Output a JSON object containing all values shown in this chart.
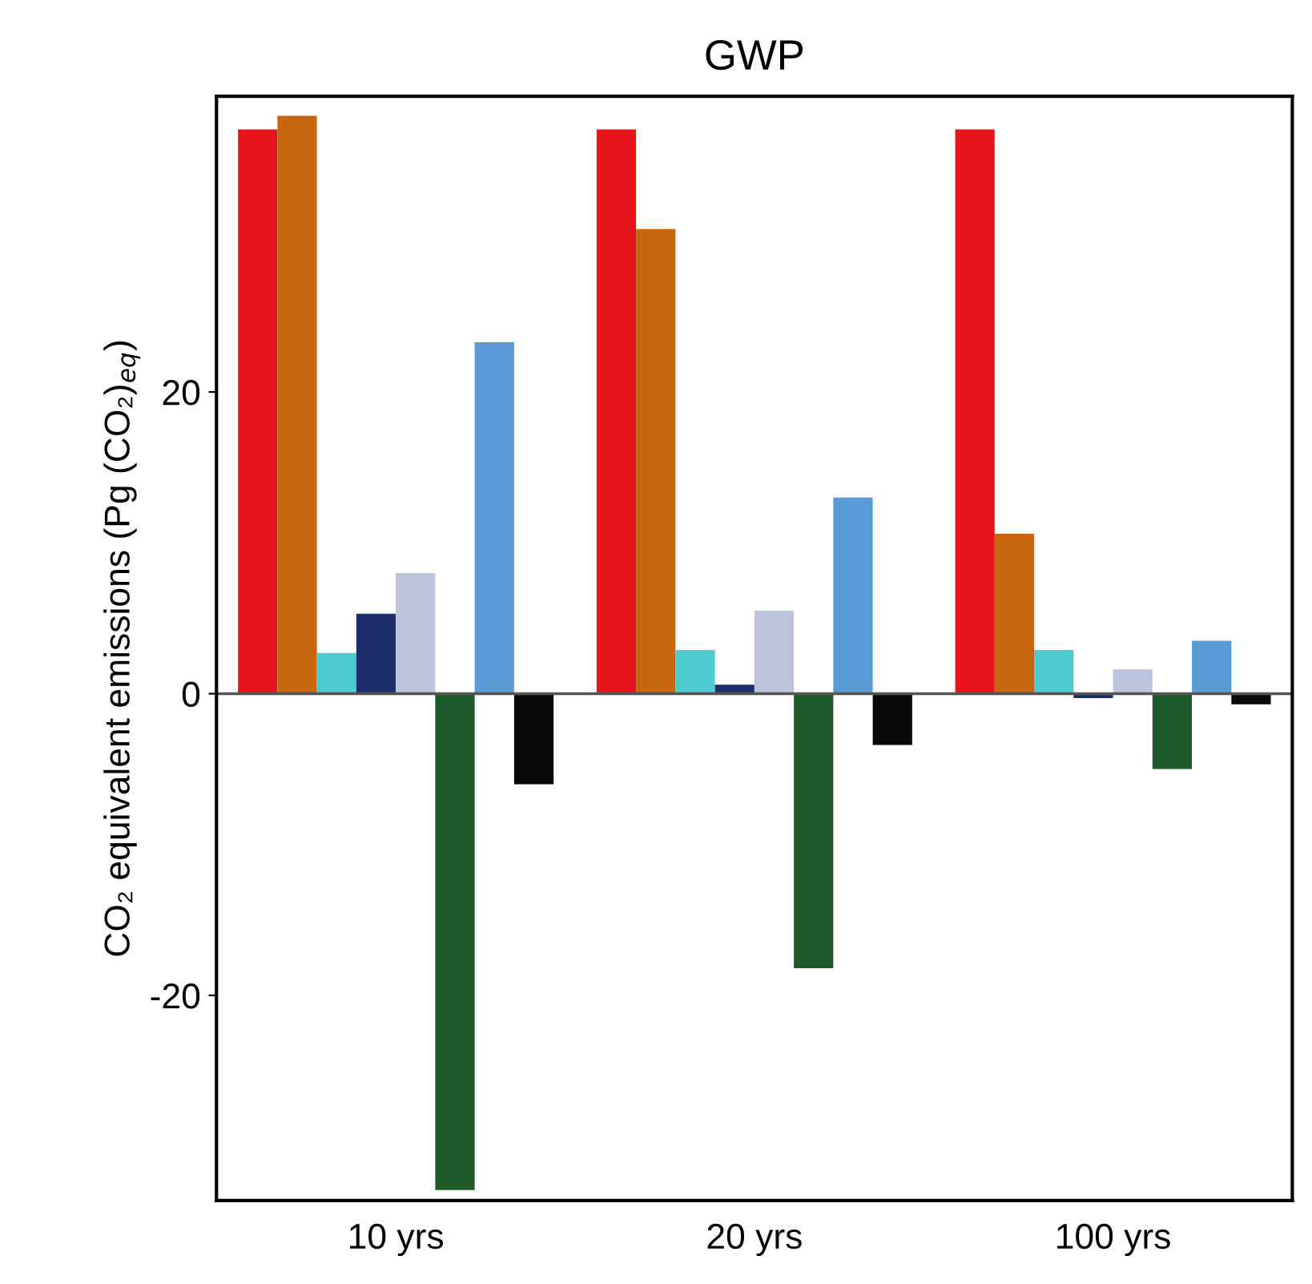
{
  "chart_data": {
    "type": "bar",
    "title": "GWP",
    "ylabel": "CO₂ equivalent emissions (Pg (CO₂)$_{eq}$)",
    "categories": [
      "10 yrs",
      "20 yrs",
      "100 yrs"
    ],
    "series": [
      {
        "color": "#e8141c",
        "values": [
          37.4,
          37.4,
          37.4
        ]
      },
      {
        "color": "#c8650f",
        "values": [
          38.3,
          30.8,
          10.6
        ]
      },
      {
        "color": "#4ecbd0",
        "values": [
          2.7,
          2.9,
          2.9
        ]
      },
      {
        "color": "#1c2f6b",
        "values": [
          5.3,
          0.6,
          -0.3
        ]
      },
      {
        "color": "#bcc4dc",
        "values": [
          8.0,
          5.5,
          1.6
        ]
      },
      {
        "color": "#1f5a2a",
        "values": [
          -32.9,
          -18.2,
          -5.0
        ]
      },
      {
        "color": "#5a9ad6",
        "values": [
          23.3,
          13.0,
          3.5
        ]
      },
      {
        "color": "#0a0a0a",
        "values": [
          -6.0,
          -3.4,
          -0.7
        ]
      }
    ],
    "ylim": [
      -33.6,
      39.6
    ],
    "yticks": [
      -20,
      0,
      20
    ],
    "ref_lines": [
      {
        "axis": "y",
        "value": 0,
        "color": "#555555"
      }
    ]
  }
}
